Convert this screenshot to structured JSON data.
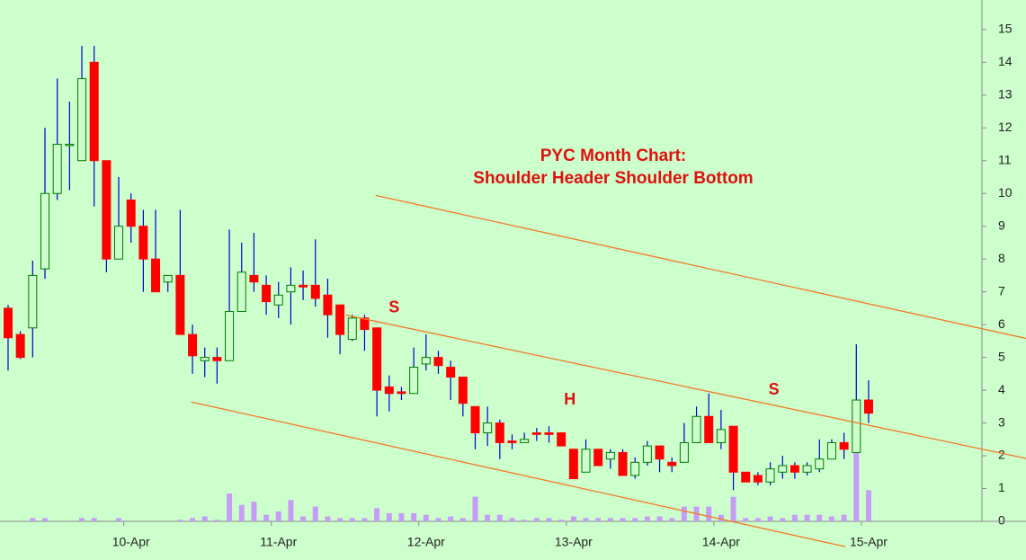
{
  "chart_data": {
    "type": "candlestick",
    "title": "PYC Month Chart:",
    "subtitle": "Shoulder Header Shoulder Bottom",
    "categories": [
      null,
      null,
      null,
      null,
      null,
      null,
      null,
      null,
      null,
      null,
      "10-Apr",
      null,
      null,
      null,
      null,
      null,
      null,
      null,
      null,
      null,
      null,
      null,
      "11-Apr",
      null,
      null,
      null,
      null,
      null,
      null,
      null,
      null,
      null,
      null,
      null,
      "12-Apr",
      null,
      null,
      null,
      null,
      null,
      null,
      null,
      null,
      null,
      null,
      null,
      "13-Apr",
      null,
      null,
      null,
      null,
      null,
      null,
      null,
      null,
      null,
      null,
      null,
      "14-Apr",
      null,
      null,
      null,
      null,
      null,
      null,
      null,
      null,
      null,
      null,
      null,
      "15-Apr"
    ],
    "open": [
      6.5,
      5.7,
      5.9,
      7.7,
      10.0,
      11.5,
      11.0,
      14.0,
      11.0,
      8.0,
      9.8,
      9.0,
      8.0,
      7.3,
      7.5,
      5.7,
      4.9,
      5.0,
      4.9,
      6.4,
      7.5,
      7.2,
      6.6,
      7.0,
      7.2,
      7.2,
      6.9,
      6.6,
      5.55,
      6.2,
      5.9,
      4.1,
      3.95,
      3.9,
      4.8,
      5.0,
      4.7,
      4.4,
      3.5,
      2.7,
      3.0,
      2.45,
      2.4,
      2.7,
      2.7,
      2.7,
      2.2,
      1.5,
      2.2,
      1.9,
      2.1,
      1.4,
      1.8,
      2.3,
      1.8,
      1.8,
      2.4,
      3.2,
      2.4,
      2.9,
      1.5,
      1.4,
      1.2,
      1.5,
      1.7,
      1.5,
      1.6,
      1.9,
      2.4,
      2.1,
      3.7
    ],
    "high": [
      6.6,
      5.8,
      7.95,
      12.0,
      13.5,
      12.8,
      14.5,
      14.5,
      11.0,
      10.5,
      10.0,
      9.5,
      9.5,
      7.5,
      9.5,
      6.0,
      5.3,
      5.3,
      8.9,
      8.5,
      8.8,
      7.5,
      7.3,
      7.75,
      7.65,
      8.6,
      7.4,
      6.6,
      6.3,
      6.3,
      5.9,
      4.45,
      4.1,
      5.3,
      5.7,
      5.2,
      4.9,
      4.4,
      3.5,
      3.5,
      3.1,
      2.65,
      2.7,
      2.85,
      2.9,
      2.7,
      2.2,
      2.5,
      2.2,
      2.2,
      2.2,
      1.95,
      2.45,
      2.3,
      1.95,
      3.0,
      3.5,
      3.9,
      3.4,
      2.9,
      1.5,
      1.5,
      1.8,
      2.0,
      1.8,
      1.8,
      2.5,
      2.5,
      2.7,
      5.4,
      4.3
    ],
    "low": [
      4.6,
      4.95,
      5.0,
      7.4,
      9.8,
      10.1,
      11.0,
      9.6,
      7.6,
      8.0,
      8.5,
      7.0,
      7.0,
      7.0,
      5.7,
      4.5,
      4.4,
      4.2,
      4.9,
      6.4,
      7.0,
      6.3,
      6.2,
      6.0,
      6.75,
      6.55,
      5.6,
      5.1,
      5.5,
      5.2,
      3.2,
      3.35,
      3.7,
      3.9,
      4.6,
      4.5,
      3.7,
      3.2,
      2.2,
      2.3,
      1.9,
      2.2,
      2.4,
      2.45,
      2.4,
      2.3,
      1.3,
      1.5,
      1.7,
      1.6,
      1.4,
      1.3,
      1.7,
      1.5,
      1.5,
      1.8,
      2.4,
      2.4,
      2.2,
      0.95,
      1.2,
      1.1,
      1.1,
      1.3,
      1.3,
      1.4,
      1.5,
      1.9,
      1.9,
      2.1,
      3.0
    ],
    "close": [
      5.6,
      5.0,
      7.5,
      10.0,
      11.5,
      11.5,
      13.5,
      11.0,
      8.0,
      9.0,
      9.0,
      8.0,
      7.0,
      7.5,
      5.7,
      5.05,
      5.0,
      4.9,
      6.4,
      7.6,
      7.3,
      6.7,
      6.9,
      7.2,
      7.15,
      6.8,
      6.3,
      5.7,
      6.2,
      5.85,
      4.0,
      3.9,
      3.9,
      4.7,
      5.0,
      4.75,
      4.4,
      3.6,
      2.7,
      3.0,
      2.4,
      2.4,
      2.5,
      2.65,
      2.65,
      2.3,
      1.3,
      2.2,
      1.7,
      2.1,
      1.4,
      1.8,
      2.3,
      1.9,
      1.7,
      2.4,
      3.2,
      2.4,
      2.8,
      1.5,
      1.2,
      1.2,
      1.6,
      1.7,
      1.5,
      1.7,
      1.9,
      2.4,
      2.2,
      3.7,
      3.3
    ],
    "volume": [
      0,
      0,
      0.1,
      0.1,
      0,
      0,
      0.1,
      0.1,
      0,
      0.1,
      0,
      0,
      0,
      0,
      0.05,
      0.1,
      0.15,
      0.05,
      0.85,
      0.5,
      0.6,
      0.2,
      0.3,
      0.65,
      0.15,
      0.45,
      0.15,
      0.1,
      0.1,
      0.1,
      0.4,
      0.25,
      0.25,
      0.25,
      0.2,
      0.1,
      0.15,
      0.1,
      0.75,
      0.2,
      0.2,
      0.1,
      0.05,
      0.1,
      0.1,
      0.05,
      0.15,
      0.1,
      0.1,
      0.1,
      0.1,
      0.1,
      0.15,
      0.15,
      0.1,
      0.45,
      0.45,
      0.45,
      0.2,
      0.75,
      0.1,
      0.1,
      0.15,
      0.1,
      0.2,
      0.2,
      0.2,
      0.15,
      0.2,
      2.1,
      0.95
    ],
    "up_color": "#ccffcc",
    "up_border": "#007a00",
    "down_color": "#ff0000",
    "wick_color": "#0000cc",
    "volume_color": "#c79cf7",
    "xlim": [
      -0.658,
      79.22
    ],
    "ylim": [
      0,
      15.9
    ],
    "yticks": [
      0,
      1,
      2,
      3,
      4,
      5,
      6,
      7,
      8,
      9,
      10,
      11,
      12,
      13,
      14,
      15
    ],
    "trend_lines": [
      {
        "x1": 29.9,
        "y1": 9.94,
        "x2": 82.8,
        "y2": 5.58
      },
      {
        "x1": 27.5,
        "y1": 6.29,
        "x2": 82.8,
        "y2": 1.92
      },
      {
        "x1": 14.9,
        "y1": 3.64,
        "x2": 68.1,
        "y2": -0.77
      }
    ],
    "trend_color": "#f27a28",
    "annotations": [
      {
        "text": "S",
        "x": 31.4,
        "y": 6.5
      },
      {
        "text": "H",
        "x": 45.7,
        "y": 3.7
      },
      {
        "text": "S",
        "x": 62.3,
        "y": 3.99
      }
    ]
  }
}
